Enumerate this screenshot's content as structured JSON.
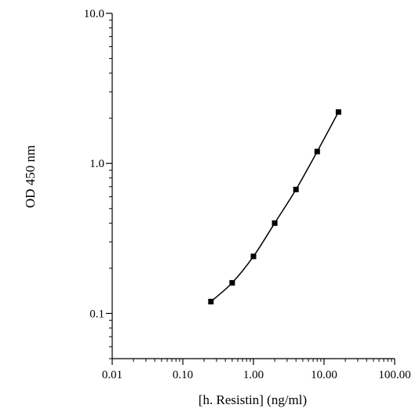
{
  "chart_data": {
    "type": "scatter",
    "title": "",
    "xlabel": "[h. Resistin] (ng/ml)",
    "ylabel": "OD 450 nm",
    "xscale": "log",
    "yscale": "log",
    "xlim": [
      0.01,
      100
    ],
    "ylim": [
      0.05,
      10
    ],
    "grid": false,
    "x_ticks": [
      0.01,
      0.1,
      1,
      10,
      100
    ],
    "x_tick_labels": [
      "0.01",
      "0.10",
      "1.00",
      "10.00",
      "100.00"
    ],
    "y_ticks": [
      0.1,
      1,
      10
    ],
    "y_tick_labels": [
      "0.1",
      "1.0",
      "10.0"
    ],
    "series": [
      {
        "x": [
          0.25,
          0.5,
          1,
          2,
          4,
          8,
          16
        ],
        "y": [
          0.12,
          0.16,
          0.24,
          0.4,
          0.67,
          1.2,
          2.2
        ],
        "marker": "square",
        "line": "smooth",
        "color": "#000000"
      }
    ]
  }
}
